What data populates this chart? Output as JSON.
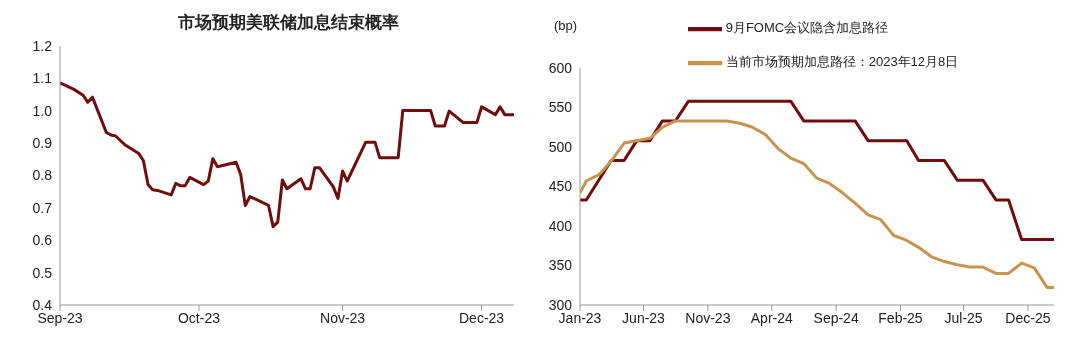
{
  "chart_data": [
    {
      "type": "line",
      "title": "市场预期美联储加息结束概率",
      "series": [
        {
          "color": "#720c0c",
          "x": [
            "2023-09-01",
            "2023-09-04",
            "2023-09-06",
            "2023-09-07",
            "2023-09-08",
            "2023-09-11",
            "2023-09-12",
            "2023-09-13",
            "2023-09-15",
            "2023-09-18",
            "2023-09-19",
            "2023-09-20",
            "2023-09-21",
            "2023-09-22",
            "2023-09-25",
            "2023-09-26",
            "2023-09-27",
            "2023-09-28",
            "2023-09-29",
            "2023-10-02",
            "2023-10-03",
            "2023-10-04",
            "2023-10-05",
            "2023-10-09",
            "2023-10-10",
            "2023-10-11",
            "2023-10-12",
            "2023-10-16",
            "2023-10-17",
            "2023-10-18",
            "2023-10-19",
            "2023-10-20",
            "2023-10-23",
            "2023-10-24",
            "2023-10-25",
            "2023-10-26",
            "2023-10-27",
            "2023-10-30",
            "2023-10-31",
            "2023-11-01",
            "2023-11-02",
            "2023-11-06",
            "2023-11-08",
            "2023-11-09",
            "2023-11-13",
            "2023-11-14",
            "2023-11-20",
            "2023-11-21",
            "2023-11-23",
            "2023-11-24",
            "2023-11-27",
            "2023-11-30",
            "2023-12-01",
            "2023-12-04",
            "2023-12-05",
            "2023-12-06",
            "2023-12-08"
          ],
          "values": [
            1.086,
            1.066,
            1.048,
            1.026,
            1.042,
            0.933,
            0.925,
            0.922,
            0.895,
            0.868,
            0.846,
            0.772,
            0.756,
            0.754,
            0.74,
            0.776,
            0.768,
            0.768,
            0.794,
            0.772,
            0.783,
            0.852,
            0.827,
            0.841,
            0.803,
            0.707,
            0.735,
            0.708,
            0.642,
            0.656,
            0.786,
            0.759,
            0.79,
            0.759,
            0.759,
            0.824,
            0.824,
            0.765,
            0.729,
            0.814,
            0.783,
            0.903,
            0.903,
            0.855,
            0.855,
            1.001,
            1.001,
            0.953,
            0.953,
            0.999,
            0.964,
            0.964,
            1.012,
            0.988,
            1.012,
            0.988,
            0.988
          ]
        }
      ],
      "xlim": [
        "2023-09-01",
        "2023-12-08"
      ],
      "xticks": [
        {
          "value": "2023-09-01",
          "label": "Sep-23"
        },
        {
          "value": "2023-10-01",
          "label": "Oct-23"
        },
        {
          "value": "2023-11-01",
          "label": "Nov-23"
        },
        {
          "value": "2023-12-01",
          "label": "Dec-23"
        }
      ],
      "ylim": [
        0.4,
        1.2
      ],
      "yticks": [
        {
          "value": 0.4,
          "label": "0.4"
        },
        {
          "value": 0.5,
          "label": "0.5"
        },
        {
          "value": 0.6,
          "label": "0.6"
        },
        {
          "value": 0.7,
          "label": "0.7"
        },
        {
          "value": 0.8,
          "label": "0.8"
        },
        {
          "value": 0.9,
          "label": "0.9"
        },
        {
          "value": 1.0,
          "label": "1.0"
        },
        {
          "value": 1.1,
          "label": "1.1"
        },
        {
          "value": 1.2,
          "label": "1.2"
        }
      ],
      "grid": false,
      "legend": false,
      "marker": "none",
      "line_style": "solid"
    },
    {
      "type": "line",
      "ylabel": "(bp)",
      "series": [
        {
          "name": "9月FOMC会议隐含加息路径",
          "color": "#720c0c",
          "x": [
            "2023-01-01",
            "2023-01-16",
            "2023-03-16",
            "2023-04-16",
            "2023-05-16",
            "2023-06-16",
            "2023-07-16",
            "2023-08-16",
            "2023-09-16",
            "2024-05-16",
            "2024-06-16",
            "2024-10-16",
            "2024-11-16",
            "2025-02-16",
            "2025-03-16",
            "2025-05-16",
            "2025-06-16",
            "2025-08-16",
            "2025-09-16",
            "2025-10-16",
            "2025-11-16",
            "2026-02-01"
          ],
          "values": [
            433,
            433,
            483,
            483,
            508,
            508,
            533,
            533,
            558,
            558,
            533,
            533,
            508,
            508,
            483,
            483,
            458,
            458,
            433,
            433,
            383,
            383
          ]
        },
        {
          "name": "当前市场预期加息路径：2023年12月8日",
          "color": "#c8934f",
          "x": [
            "2023-01-01",
            "2023-01-16",
            "2023-02-15",
            "2023-03-16",
            "2023-04-16",
            "2023-06-16",
            "2023-07-16",
            "2023-08-16",
            "2023-12-16",
            "2024-01-16",
            "2024-02-15",
            "2024-03-16",
            "2024-04-16",
            "2024-05-16",
            "2024-06-16",
            "2024-07-16",
            "2024-08-16",
            "2024-09-16",
            "2024-10-16",
            "2024-11-16",
            "2024-12-16",
            "2025-01-16",
            "2025-02-15",
            "2025-03-16",
            "2025-04-16",
            "2025-05-16",
            "2025-06-16",
            "2025-07-16",
            "2025-08-16",
            "2025-09-16",
            "2025-10-16",
            "2025-11-16",
            "2025-12-16",
            "2026-01-16",
            "2026-02-01"
          ],
          "values": [
            442,
            457,
            465,
            482,
            505,
            511,
            525,
            533,
            533,
            530,
            525,
            516,
            498,
            486,
            479,
            461,
            454,
            442,
            429,
            414,
            408,
            388,
            382,
            373,
            361,
            355,
            351,
            348,
            348,
            340,
            340,
            353,
            347,
            322,
            322
          ]
        }
      ],
      "xlim": [
        "2023-01-01",
        "2026-02-01"
      ],
      "xticks": [
        {
          "value": "2023-01-01",
          "label": "Jan-23"
        },
        {
          "value": "2023-06-01",
          "label": "Jun-23"
        },
        {
          "value": "2023-11-01",
          "label": "Nov-23"
        },
        {
          "value": "2024-04-01",
          "label": "Apr-24"
        },
        {
          "value": "2024-09-01",
          "label": "Sep-24"
        },
        {
          "value": "2025-02-01",
          "label": "Feb-25"
        },
        {
          "value": "2025-07-01",
          "label": "Jul-25"
        },
        {
          "value": "2025-12-01",
          "label": "Dec-25"
        }
      ],
      "ylim": [
        300,
        600
      ],
      "yticks": [
        300,
        350,
        400,
        450,
        500,
        550,
        600
      ],
      "grid": false,
      "legend": "top",
      "marker": "none",
      "line_style": "solid"
    }
  ]
}
